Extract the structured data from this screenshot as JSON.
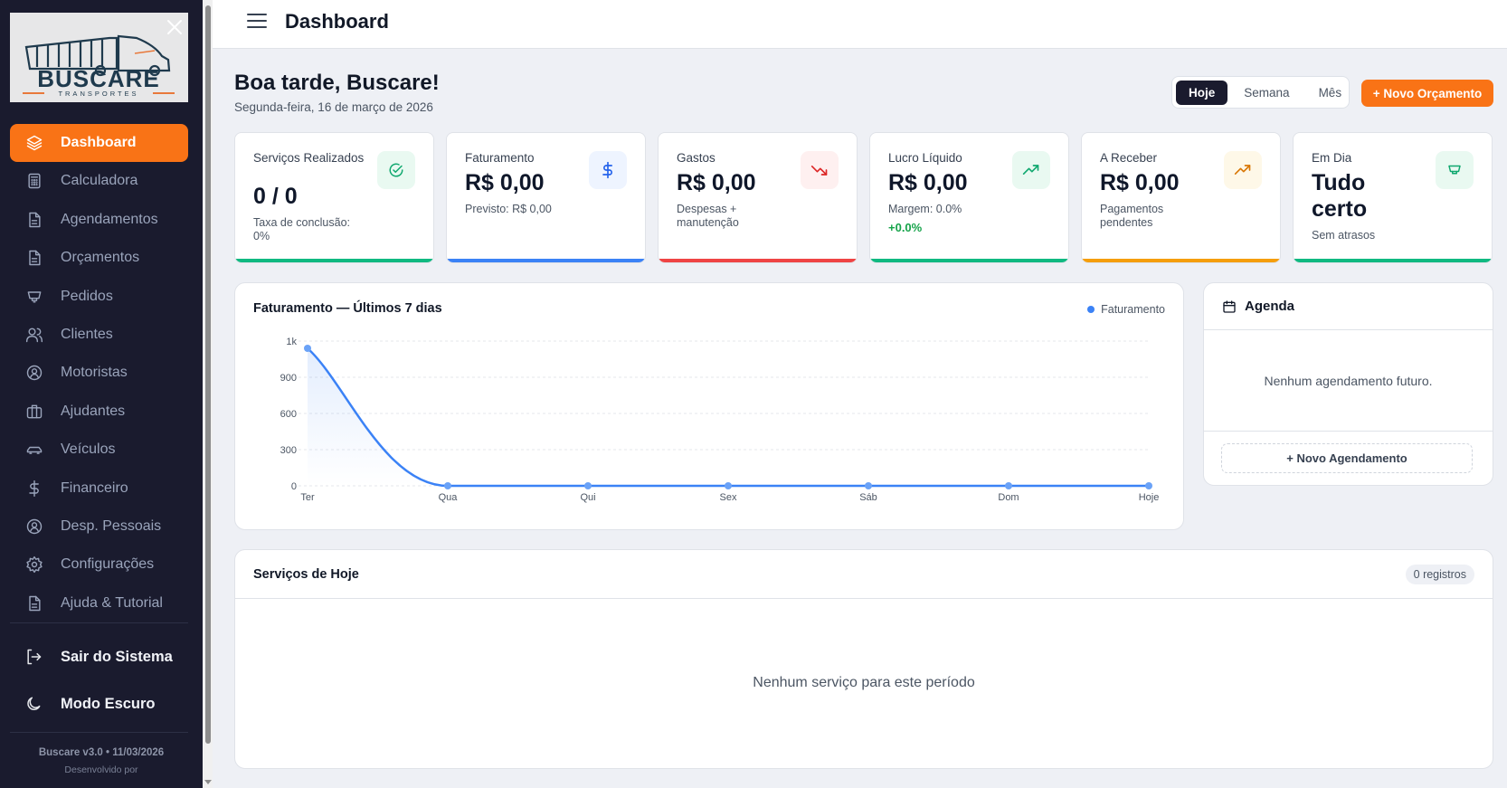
{
  "app": {
    "brand": "BUSCARE",
    "brand_sub": "TRANSPORTES"
  },
  "sidebar": {
    "items": [
      {
        "label": "Dashboard",
        "icon": "layers-icon",
        "active": true
      },
      {
        "label": "Calculadora",
        "icon": "calculator-icon"
      },
      {
        "label": "Agendamentos",
        "icon": "document-icon"
      },
      {
        "label": "Orçamentos",
        "icon": "document-icon"
      },
      {
        "label": "Pedidos",
        "icon": "cup-icon"
      },
      {
        "label": "Clientes",
        "icon": "users-icon"
      },
      {
        "label": "Motoristas",
        "icon": "user-circle-icon"
      },
      {
        "label": "Ajudantes",
        "icon": "briefcase-icon"
      },
      {
        "label": "Veículos",
        "icon": "car-icon"
      },
      {
        "label": "Financeiro",
        "icon": "dollar-icon"
      },
      {
        "label": "Desp. Pessoais",
        "icon": "user-circle-icon"
      },
      {
        "label": "Configurações",
        "icon": "gear-icon"
      },
      {
        "label": "Ajuda & Tutorial",
        "icon": "document-icon"
      }
    ],
    "logout_label": "Sair do Sistema",
    "dark_mode_label": "Modo Escuro",
    "version": "Buscare v3.0 • 11/03/2026",
    "developed_by": "Desenvolvido por"
  },
  "header": {
    "title": "Dashboard"
  },
  "greeting": {
    "title": "Boa tarde, Buscare!",
    "date": "Segunda-feira, 16 de março de 2026"
  },
  "period_filter": {
    "options": [
      "Hoje",
      "Semana",
      "Mês"
    ],
    "selected": "Hoje"
  },
  "new_quote_button": "+ Novo Orçamento",
  "stats": [
    {
      "label": "Serviços Realizados",
      "value": "0 / 0",
      "sub": "Taxa de conclusão: 0%",
      "color": "#10b981",
      "icon": "check-circle-icon",
      "icon_bg": "#e9f9f1",
      "icon_color": "#10a86f"
    },
    {
      "label": "Faturamento",
      "value": "R$ 0,00",
      "sub": "Previsto: R$ 0,00",
      "color": "#3b82f6",
      "icon": "dollar-icon",
      "icon_bg": "#eef4ff",
      "icon_color": "#2563eb"
    },
    {
      "label": "Gastos",
      "value": "R$ 0,00",
      "sub": "Despesas + manutenção",
      "color": "#ef4444",
      "icon": "trending-down-icon",
      "icon_bg": "#fef0f0",
      "icon_color": "#dc2626"
    },
    {
      "label": "Lucro Líquido",
      "value": "R$ 0,00",
      "sub": "Margem: 0.0%",
      "delta": "+0.0%",
      "color": "#10b981",
      "icon": "trending-up-icon",
      "icon_bg": "#e9f9f1",
      "icon_color": "#10a86f"
    },
    {
      "label": "A Receber",
      "value": "R$ 0,00",
      "sub": "Pagamentos pendentes",
      "color": "#f59e0b",
      "icon": "trending-up-icon",
      "icon_bg": "#fef8e8",
      "icon_color": "#d97706"
    },
    {
      "label": "Em Dia",
      "value": "Tudo certo",
      "sub": "Sem atrasos",
      "color": "#10b981",
      "icon": "cup-icon",
      "icon_bg": "#e9f9f1",
      "icon_color": "#10a86f"
    }
  ],
  "chart": {
    "title": "Faturamento — Últimos 7 dias",
    "legend": "Faturamento"
  },
  "chart_data": {
    "type": "area",
    "title": "Faturamento — Últimos 7 dias",
    "categories": [
      "Ter",
      "Qua",
      "Qui",
      "Sex",
      "Sáb",
      "Dom",
      "Hoje"
    ],
    "series": [
      {
        "name": "Faturamento",
        "values": [
          950,
          0,
          0,
          0,
          0,
          0,
          0
        ],
        "color": "#3b82f6"
      }
    ],
    "yticks": [
      "0",
      "300",
      "600",
      "900",
      "1k"
    ],
    "ylim": [
      0,
      1000
    ],
    "xlabel": "",
    "ylabel": "",
    "grid": true,
    "legend_position": "top-right"
  },
  "agenda": {
    "title": "Agenda",
    "empty": "Nenhum agendamento futuro.",
    "new_button": "+ Novo Agendamento"
  },
  "services": {
    "title": "Serviços de Hoje",
    "count": "0 registros",
    "empty": "Nenhum serviço para este período"
  }
}
